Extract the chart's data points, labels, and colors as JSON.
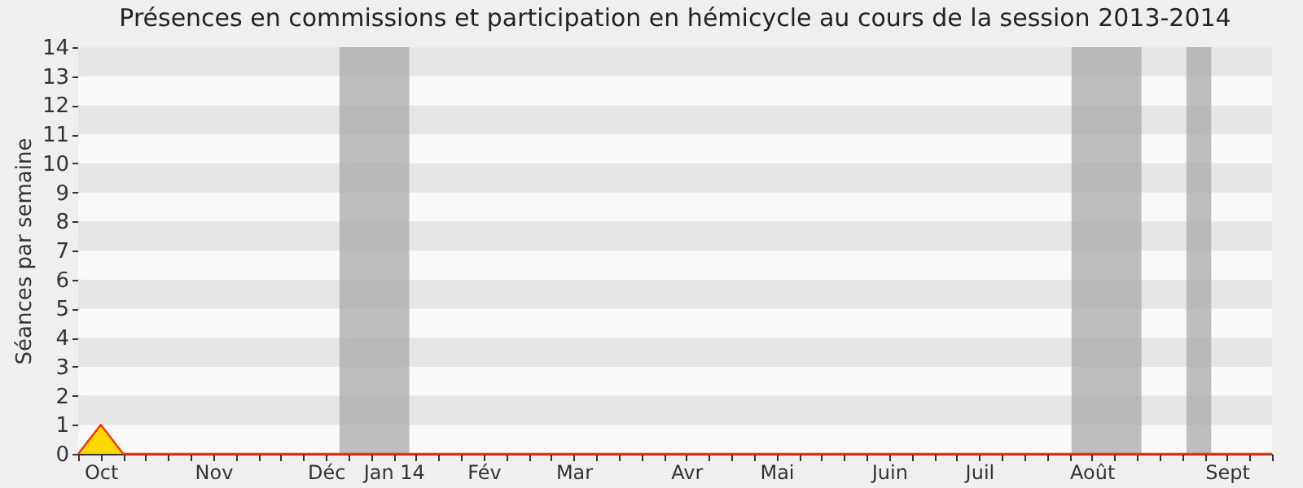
{
  "chart_data": {
    "type": "area",
    "title": "Présences en commissions et participation en hémicycle au cours de la session 2013-2014",
    "ylabel": "Séances par semaine",
    "categories": [
      null,
      "Oct",
      null,
      null,
      null,
      null,
      "Nov",
      null,
      null,
      null,
      null,
      "Déc",
      null,
      null,
      "Jan 14",
      null,
      null,
      null,
      "Fév",
      null,
      null,
      null,
      "Mar",
      null,
      null,
      null,
      null,
      "Avr",
      null,
      null,
      null,
      "Mai",
      null,
      null,
      null,
      null,
      "Juin",
      null,
      null,
      null,
      "Juil",
      null,
      null,
      null,
      null,
      "Août",
      null,
      null,
      null,
      null,
      null,
      "Sept",
      null,
      null
    ],
    "series": [
      {
        "color": "#ffd700",
        "values": [
          0,
          1,
          0,
          0,
          0,
          0,
          0,
          0,
          0,
          0,
          0,
          0,
          0,
          0,
          0,
          0,
          0,
          0,
          0,
          0,
          0,
          0,
          0,
          0,
          0,
          0,
          0,
          0,
          0,
          0,
          0,
          0,
          0,
          0,
          0,
          0,
          0,
          0,
          0,
          0,
          0,
          0,
          0,
          0,
          0,
          0,
          0,
          0,
          0,
          0,
          0,
          0,
          0,
          0
        ]
      }
    ],
    "ylim": [
      0,
      14
    ],
    "yticks": [
      0,
      1,
      2,
      3,
      4,
      5,
      6,
      7,
      8,
      9,
      10,
      11,
      12,
      13,
      14
    ],
    "grid": "y"
  }
}
